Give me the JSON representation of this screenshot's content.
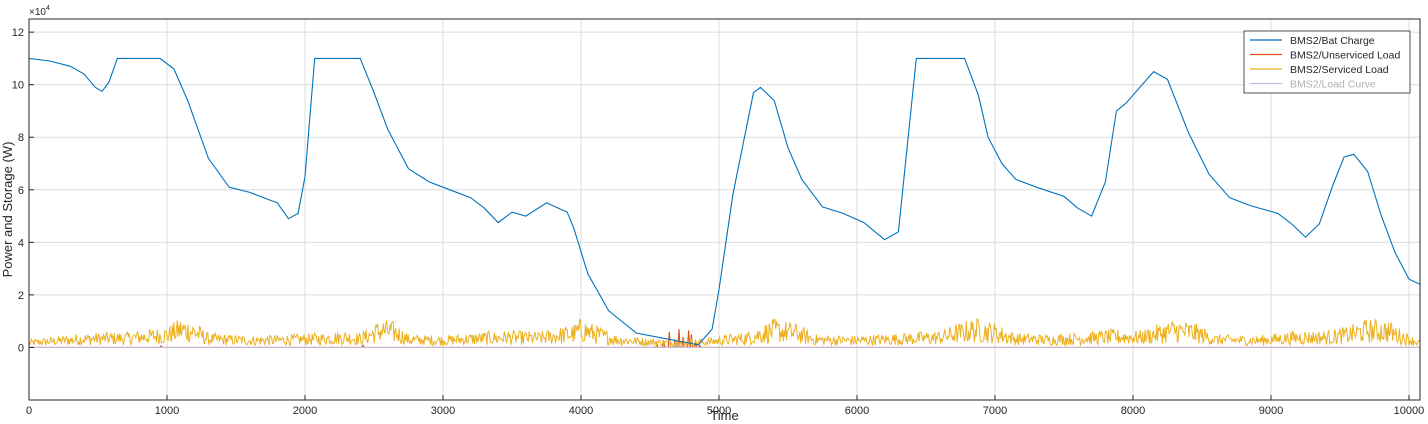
{
  "chart_data": {
    "type": "line",
    "xlabel": "Time",
    "ylabel": "Power and Storage (W)",
    "exponent_label": "×10",
    "exponent_power": "4",
    "xlim": [
      0,
      10080
    ],
    "ylim": [
      -20000,
      125000
    ],
    "x_ticks": [
      0,
      1000,
      2000,
      3000,
      4000,
      5000,
      6000,
      7000,
      8000,
      9000,
      10000
    ],
    "x_tick_labels": [
      "0",
      "1000",
      "2000",
      "3000",
      "4000",
      "5000",
      "6000",
      "7000",
      "8000",
      "9000",
      "10000"
    ],
    "y_ticks": [
      0,
      20000,
      40000,
      60000,
      80000,
      100000,
      120000
    ],
    "y_tick_labels": [
      "0",
      "2",
      "4",
      "6",
      "8",
      "10",
      "12"
    ],
    "grid": true,
    "legend_position": "top-right",
    "series": [
      {
        "name": "BMS2/Bat Charge",
        "color": "#0072bd",
        "points": [
          [
            0,
            110000
          ],
          [
            150,
            109000
          ],
          [
            300,
            107000
          ],
          [
            400,
            104000
          ],
          [
            480,
            99000
          ],
          [
            530,
            97500
          ],
          [
            580,
            101000
          ],
          [
            640,
            110000
          ],
          [
            700,
            110000
          ],
          [
            950,
            110000
          ],
          [
            1050,
            106000
          ],
          [
            1150,
            94000
          ],
          [
            1300,
            72000
          ],
          [
            1450,
            61000
          ],
          [
            1600,
            59000
          ],
          [
            1800,
            55000
          ],
          [
            1880,
            49000
          ],
          [
            1950,
            51000
          ],
          [
            2000,
            65000
          ],
          [
            2070,
            110000
          ],
          [
            2400,
            110000
          ],
          [
            2500,
            97000
          ],
          [
            2600,
            83000
          ],
          [
            2750,
            68000
          ],
          [
            2900,
            63000
          ],
          [
            3050,
            60000
          ],
          [
            3200,
            57000
          ],
          [
            3300,
            53000
          ],
          [
            3400,
            47500
          ],
          [
            3500,
            51500
          ],
          [
            3600,
            50000
          ],
          [
            3750,
            55000
          ],
          [
            3900,
            51500
          ],
          [
            3950,
            45000
          ],
          [
            4050,
            28000
          ],
          [
            4200,
            14000
          ],
          [
            4400,
            5500
          ],
          [
            4600,
            3500
          ],
          [
            4800,
            1500
          ],
          [
            4850,
            1000
          ],
          [
            4950,
            7000
          ],
          [
            5000,
            22000
          ],
          [
            5100,
            58000
          ],
          [
            5250,
            97000
          ],
          [
            5300,
            99000
          ],
          [
            5400,
            94000
          ],
          [
            5500,
            76000
          ],
          [
            5600,
            64000
          ],
          [
            5750,
            53500
          ],
          [
            5900,
            51000
          ],
          [
            6050,
            47500
          ],
          [
            6200,
            41000
          ],
          [
            6300,
            44000
          ],
          [
            6430,
            110000
          ],
          [
            6780,
            110000
          ],
          [
            6880,
            96000
          ],
          [
            6950,
            80000
          ],
          [
            7050,
            70000
          ],
          [
            7150,
            64000
          ],
          [
            7300,
            61000
          ],
          [
            7500,
            57500
          ],
          [
            7600,
            53000
          ],
          [
            7700,
            50000
          ],
          [
            7800,
            63000
          ],
          [
            7880,
            90000
          ],
          [
            7950,
            93000
          ],
          [
            8050,
            99000
          ],
          [
            8150,
            105000
          ],
          [
            8250,
            102000
          ],
          [
            8400,
            82000
          ],
          [
            8550,
            66000
          ],
          [
            8700,
            57000
          ],
          [
            8850,
            54000
          ],
          [
            9050,
            51000
          ],
          [
            9150,
            47000
          ],
          [
            9250,
            42000
          ],
          [
            9350,
            47000
          ],
          [
            9450,
            62000
          ],
          [
            9530,
            72500
          ],
          [
            9600,
            73500
          ],
          [
            9700,
            67000
          ],
          [
            9800,
            50000
          ],
          [
            9900,
            36000
          ],
          [
            10000,
            26000
          ],
          [
            10080,
            24000
          ]
        ]
      },
      {
        "name": "BMS2/Unserviced Load",
        "color": "#d95319",
        "baseline": 0,
        "spikes": [
          [
            957,
            600
          ],
          [
            2420,
            800
          ],
          [
            4550,
            1500
          ],
          [
            4600,
            2500
          ],
          [
            4640,
            6000
          ],
          [
            4680,
            3000
          ],
          [
            4710,
            7000
          ],
          [
            4740,
            4000
          ],
          [
            4780,
            6500
          ],
          [
            4800,
            5000
          ],
          [
            4830,
            2000
          ],
          [
            4860,
            800
          ]
        ]
      },
      {
        "name": "BMS2/Serviced Load",
        "color": "#edb120",
        "envelope": [
          [
            0,
            3000
          ],
          [
            400,
            5500
          ],
          [
            700,
            6000
          ],
          [
            1000,
            8000
          ],
          [
            1100,
            11500
          ],
          [
            1200,
            10000
          ],
          [
            1300,
            5500
          ],
          [
            1600,
            4500
          ],
          [
            1900,
            5000
          ],
          [
            2100,
            5500
          ],
          [
            2300,
            6500
          ],
          [
            2400,
            5500
          ],
          [
            2550,
            11000
          ],
          [
            2650,
            10000
          ],
          [
            2750,
            5000
          ],
          [
            3000,
            4500
          ],
          [
            3300,
            6000
          ],
          [
            3500,
            6500
          ],
          [
            3700,
            6000
          ],
          [
            3950,
            9000
          ],
          [
            4000,
            11500
          ],
          [
            4100,
            9000
          ],
          [
            4250,
            5000
          ],
          [
            4500,
            3500
          ],
          [
            4700,
            3000
          ],
          [
            4900,
            3500
          ],
          [
            5200,
            6000
          ],
          [
            5400,
            11000
          ],
          [
            5550,
            9500
          ],
          [
            5700,
            5000
          ],
          [
            6000,
            4500
          ],
          [
            6300,
            5500
          ],
          [
            6600,
            6500
          ],
          [
            6850,
            11500
          ],
          [
            7000,
            9500
          ],
          [
            7150,
            5500
          ],
          [
            7400,
            5000
          ],
          [
            7650,
            6000
          ],
          [
            7850,
            7000
          ],
          [
            8050,
            6500
          ],
          [
            8300,
            11000
          ],
          [
            8450,
            9500
          ],
          [
            8600,
            5000
          ],
          [
            8900,
            4500
          ],
          [
            9200,
            6500
          ],
          [
            9400,
            6500
          ],
          [
            9550,
            8000
          ],
          [
            9700,
            11000
          ],
          [
            9850,
            10500
          ],
          [
            10000,
            5000
          ],
          [
            10080,
            3000
          ]
        ]
      },
      {
        "name": "BMS2/Load Curve",
        "color": "#c8b8d8",
        "points": [
          [
            0,
            0
          ],
          [
            10080,
            0
          ]
        ]
      }
    ]
  }
}
